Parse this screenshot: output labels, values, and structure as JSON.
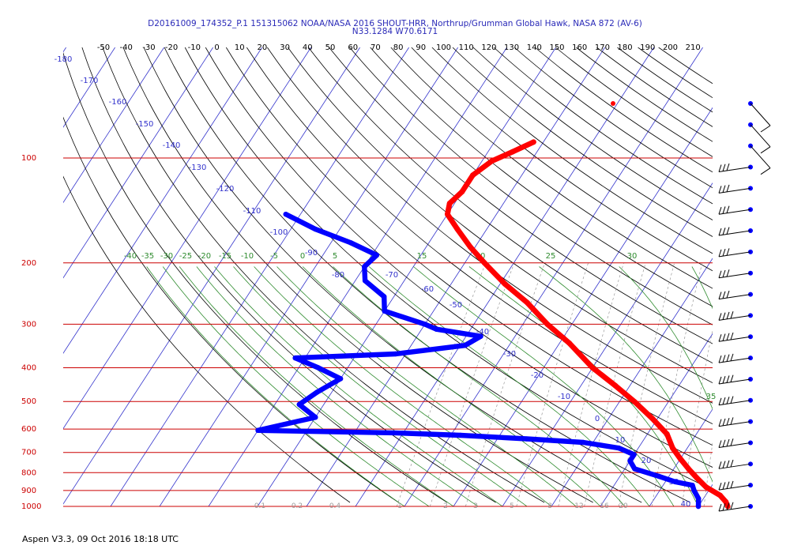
{
  "header": {
    "title": "D20161009_174352_P.1 151315062 NOAA/NASA 2016 SHOUT-HRR, Northrup/Grumman Global Hawk, NASA 872 (AV-6)",
    "location": "N33.1284 W70.6171"
  },
  "footer": {
    "text": "Aspen V3.3, 09 Oct 2016  18:18 UTC"
  },
  "colors": {
    "temperature": "#ff0000",
    "dewpoint": "#0000ff",
    "isobar": "#cc0000",
    "isotherm": "#3333cc",
    "dry_adiabat": "#000000",
    "moist_adiabat": "#2e8b2e",
    "mixing_ratio": "#999999"
  },
  "chart_data": {
    "type": "skew-t",
    "pressure_ticks": [
      "100",
      "200",
      "300",
      "400",
      "500",
      "600",
      "700",
      "800",
      "900",
      "1000"
    ],
    "top_scale_labels": [
      "-50",
      "-40",
      "-30",
      "-20",
      "-10",
      "0",
      "10",
      "20",
      "30",
      "40",
      "50",
      "60",
      "70",
      "80",
      "90",
      "100",
      "110",
      "120",
      "130",
      "140",
      "150",
      "160",
      "170",
      "180",
      "190",
      "200",
      "210"
    ],
    "isotherm_labels": [
      "-180",
      "-170",
      "-160",
      "-150",
      "-140",
      "-130",
      "-120",
      "-110",
      "-100",
      "-90",
      "-80",
      "-70",
      "-60",
      "-50",
      "-40",
      "-30",
      "-20",
      "-10",
      "0",
      "10",
      "20",
      "30",
      "40"
    ],
    "moist_adiabat_labels": [
      "-40",
      "-35",
      "-30",
      "-25",
      "-20",
      "-15",
      "-10",
      "-5",
      "0",
      "5",
      "10",
      "15",
      "20",
      "25",
      "30",
      "35"
    ],
    "mixing_ratio_labels": [
      "0.1",
      "0.2",
      "0.4",
      "1",
      "2",
      "3",
      "5",
      "8",
      "12",
      "16",
      "20"
    ],
    "temperature_profile": [
      {
        "p": 90,
        "t": -62
      },
      {
        "p": 96,
        "t": -65
      },
      {
        "p": 102,
        "t": -68
      },
      {
        "p": 112,
        "t": -70
      },
      {
        "p": 125,
        "t": -70
      },
      {
        "p": 135,
        "t": -71
      },
      {
        "p": 145,
        "t": -70
      },
      {
        "p": 160,
        "t": -66
      },
      {
        "p": 180,
        "t": -61
      },
      {
        "p": 200,
        "t": -56
      },
      {
        "p": 230,
        "t": -49
      },
      {
        "p": 260,
        "t": -42
      },
      {
        "p": 300,
        "t": -35
      },
      {
        "p": 340,
        "t": -28
      },
      {
        "p": 400,
        "t": -20
      },
      {
        "p": 450,
        "t": -13
      },
      {
        "p": 500,
        "t": -7
      },
      {
        "p": 560,
        "t": -1
      },
      {
        "p": 620,
        "t": 4
      },
      {
        "p": 680,
        "t": 7
      },
      {
        "p": 730,
        "t": 10
      },
      {
        "p": 780,
        "t": 13
      },
      {
        "p": 830,
        "t": 16
      },
      {
        "p": 880,
        "t": 19
      },
      {
        "p": 930,
        "t": 23
      },
      {
        "p": 970,
        "t": 25
      },
      {
        "p": 1000,
        "t": 26
      }
    ],
    "dewpoint_profile": [
      {
        "p": 145,
        "t": -103
      },
      {
        "p": 160,
        "t": -95
      },
      {
        "p": 175,
        "t": -86
      },
      {
        "p": 190,
        "t": -79
      },
      {
        "p": 205,
        "t": -80
      },
      {
        "p": 225,
        "t": -78
      },
      {
        "p": 250,
        "t": -72
      },
      {
        "p": 275,
        "t": -70
      },
      {
        "p": 300,
        "t": -60
      },
      {
        "p": 310,
        "t": -57
      },
      {
        "p": 325,
        "t": -47
      },
      {
        "p": 345,
        "t": -49
      },
      {
        "p": 365,
        "t": -62
      },
      {
        "p": 375,
        "t": -82
      },
      {
        "p": 400,
        "t": -76
      },
      {
        "p": 430,
        "t": -70
      },
      {
        "p": 470,
        "t": -73
      },
      {
        "p": 510,
        "t": -75
      },
      {
        "p": 555,
        "t": -70
      },
      {
        "p": 605,
        "t": -80
      },
      {
        "p": 615,
        "t": -52
      },
      {
        "p": 625,
        "t": -38
      },
      {
        "p": 640,
        "t": -24
      },
      {
        "p": 655,
        "t": -12
      },
      {
        "p": 680,
        "t": -4
      },
      {
        "p": 710,
        "t": 0
      },
      {
        "p": 740,
        "t": 0
      },
      {
        "p": 780,
        "t": 2
      },
      {
        "p": 820,
        "t": 8
      },
      {
        "p": 850,
        "t": 12
      },
      {
        "p": 870,
        "t": 16
      },
      {
        "p": 900,
        "t": 17
      },
      {
        "p": 950,
        "t": 19
      },
      {
        "p": 1000,
        "t": 20
      }
    ],
    "wind_barb_count": 20
  }
}
